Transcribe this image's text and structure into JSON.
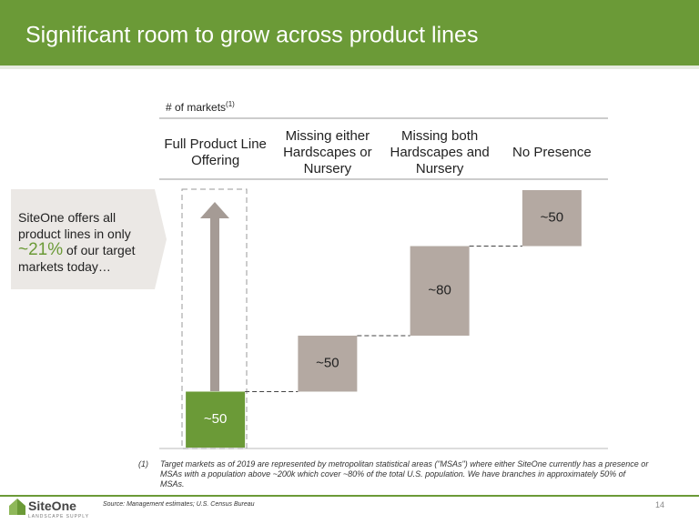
{
  "chart_data": {
    "type": "waterfall",
    "axis_label": "# of markets",
    "axis_label_note": "(1)",
    "categories": [
      "Full Product Line Offering",
      "Missing either Hardscapes or Nursery",
      "Missing both Hardscapes and Nursery",
      "No Presence"
    ],
    "values": [
      50,
      50,
      80,
      50
    ],
    "value_labels": [
      "~50",
      "~50",
      "~80",
      "~50"
    ],
    "colors": [
      "#6b9a37",
      "#b4a9a2",
      "#b4a9a2",
      "#b4a9a2"
    ]
  },
  "slide": {
    "title": "Significant room to grow across product lines",
    "callout": {
      "before": "SiteOne offers all product lines in only",
      "highlight": "~21%",
      "after": "of our target markets today…"
    },
    "footnote": {
      "marker": "(1)",
      "text": "Target markets as of 2019 are represented by metropolitan statistical areas (\"MSAs\") where either SiteOne currently has a presence or MSAs with a population above ~200k which cover ~80% of the total U.S. population. We have branches in approximately 50% of MSAs."
    },
    "source": "Source:  Management  estimates; U.S. Census Bureau",
    "page_number": "14",
    "logo": {
      "name": "SiteOne",
      "tagline": "LANDSCAPE SUPPLY"
    }
  }
}
